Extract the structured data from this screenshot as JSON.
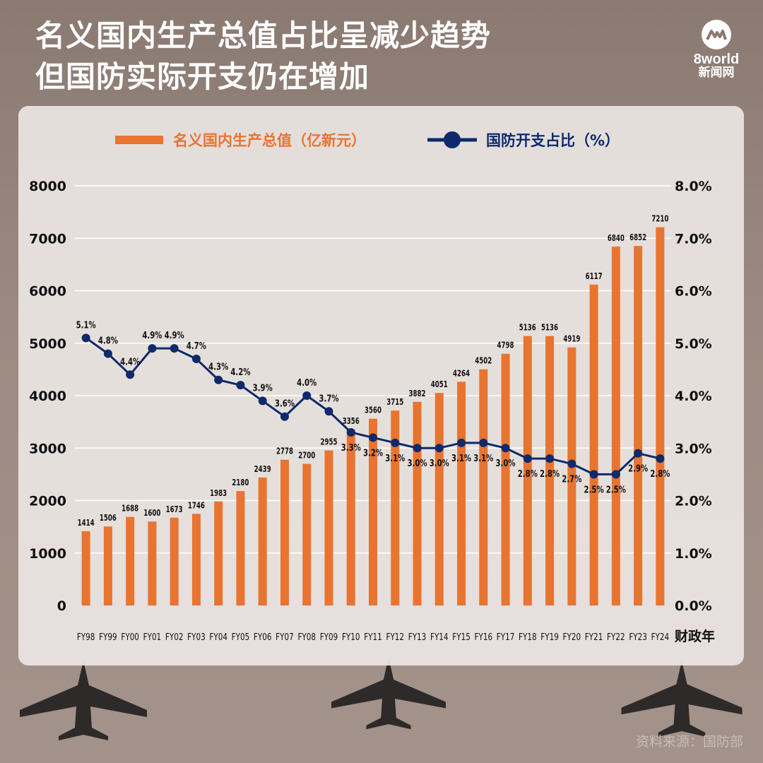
{
  "header": {
    "title_line1": "名义国内生产总值占比呈减少趋势",
    "title_line2": "但国防实际开支仍在增加"
  },
  "logo": {
    "brand": "8world",
    "sub": "新闻网"
  },
  "source": "资料来源：国防部",
  "colors": {
    "bar": "#e87430",
    "line": "#0e2a6b",
    "legend_bar_text": "#e87430",
    "legend_line_text": "#0e2a6b"
  },
  "chart_data": {
    "type": "bar+line",
    "categories": [
      "FY98",
      "FY99",
      "FY00",
      "FY01",
      "FY02",
      "FY03",
      "FY04",
      "FY05",
      "FY06",
      "FY07",
      "FY08",
      "FY09",
      "FY10",
      "FY11",
      "FY12",
      "FY13",
      "FY14",
      "FY15",
      "FY16",
      "FY17",
      "FY18",
      "FY19",
      "FY20",
      "FY21",
      "FY22",
      "FY23",
      "FY24"
    ],
    "xlabel": "财政年",
    "series": [
      {
        "name": "名义国内生产总值（亿新元）",
        "type": "bar",
        "axis": "left",
        "values": [
          1414,
          1506,
          1688,
          1600,
          1673,
          1746,
          1983,
          2180,
          2439,
          2778,
          2700,
          2955,
          3356,
          3560,
          3715,
          3882,
          4051,
          4264,
          4502,
          4798,
          5136,
          5136,
          4919,
          6117,
          6840,
          6852,
          7210
        ]
      },
      {
        "name": "国防开支占比（%）",
        "type": "line",
        "axis": "right",
        "values": [
          5.1,
          4.8,
          4.4,
          4.9,
          4.9,
          4.7,
          4.3,
          4.2,
          3.9,
          3.6,
          4.0,
          3.7,
          3.3,
          3.2,
          3.1,
          3.0,
          3.0,
          3.1,
          3.1,
          3.0,
          2.8,
          2.8,
          2.7,
          2.5,
          2.5,
          2.9,
          2.8
        ],
        "labels": [
          "5.1%",
          "4.8%",
          "4.4%",
          "4.9%",
          "4.9%",
          "4.7%",
          "4.3%",
          "4.2%",
          "3.9%",
          "3.6%",
          "4.0%",
          "3.7%",
          "3.3%",
          "3.2%",
          "3.1%",
          "3.0%",
          "3.0%",
          "3.1%",
          "3.1%",
          "3.0%",
          "2.8%",
          "2.8%",
          "2.7%",
          "2.5%",
          "2.5%",
          "2.9%",
          "2.8%"
        ]
      }
    ],
    "y_left": {
      "ylim": [
        0,
        8000
      ],
      "ticks": [
        "0",
        "1000",
        "2000",
        "3000",
        "4000",
        "5000",
        "6000",
        "7000",
        "8000"
      ]
    },
    "y_right": {
      "ylim": [
        0,
        8.0
      ],
      "ticks": [
        "0.0%",
        "1.0%",
        "2.0%",
        "3.0%",
        "4.0%",
        "5.0%",
        "6.0%",
        "7.0%",
        "8.0%"
      ]
    },
    "grid": true,
    "legend": "top"
  }
}
